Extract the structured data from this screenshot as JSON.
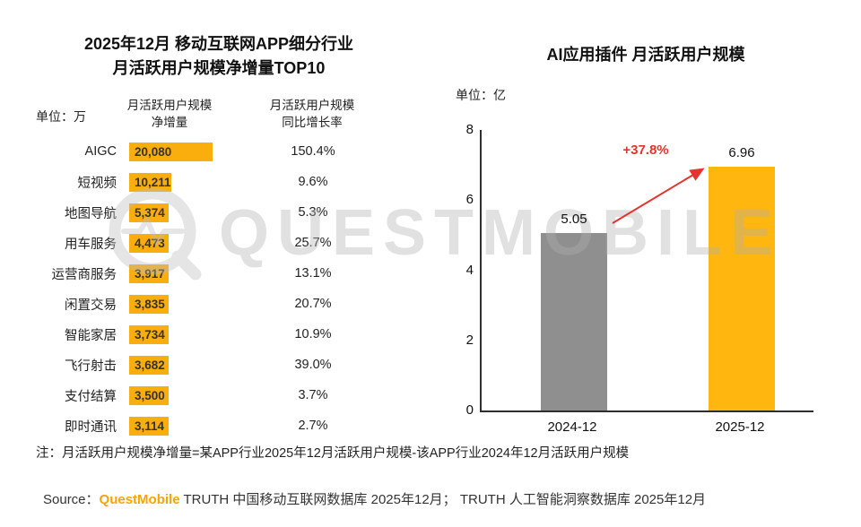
{
  "watermark": {
    "text": "QUESTMOBILE"
  },
  "left_panel": {
    "title_line1": "2025年12月 移动互联网APP细分行业",
    "title_line2": "月活跃用户规模净增量TOP10",
    "unit_label": "单位：万",
    "col_net_increase_l1": "月活跃用户规模",
    "col_net_increase_l2": "净增量",
    "col_growth_l1": "月活跃用户规模",
    "col_growth_l2": "同比增长率"
  },
  "right_panel": {
    "title": "AI应用插件 月活跃用户规模",
    "unit_label": "单位：亿",
    "growth_label": "+37.8%"
  },
  "note": "注：月活跃用户规模净增量=某APP行业2025年12月活跃用户规模-该APP行业2024年12月活跃用户规模",
  "source": {
    "prefix": "Source：",
    "brand": "QuestMobile",
    "rest": " TRUTH 中国移动互联网数据库 2025年12月； TRUTH 人工智能洞察数据库 2025年12月"
  },
  "colors": {
    "bar_orange": "#F9AE0D",
    "bar_gray": "#8F8F8F",
    "bar_orange_right": "#FFB60E",
    "accent_red": "#E5332E",
    "brand_orange": "#F7A600"
  },
  "chart_data": [
    {
      "type": "bar",
      "orientation": "horizontal",
      "title": "2025年12月 移动互联网APP细分行业 月活跃用户规模净增量TOP10",
      "unit": "万",
      "legend_position": "none",
      "grid": false,
      "categories": [
        "AIGC",
        "短视频",
        "地图导航",
        "用车服务",
        "运营商服务",
        "闲置交易",
        "智能家居",
        "飞行射击",
        "支付结算",
        "即时通讯"
      ],
      "series": [
        {
          "name": "月活跃用户规模净增量",
          "values": [
            20080,
            10211,
            5374,
            4473,
            3917,
            3835,
            3734,
            3682,
            3500,
            3114
          ],
          "labels": [
            "20,080",
            "10,211",
            "5,374",
            "4,473",
            "3,917",
            "3,835",
            "3,734",
            "3,682",
            "3,500",
            "3,114"
          ]
        },
        {
          "name": "月活跃用户规模同比增长率",
          "values": [
            150.4,
            9.6,
            5.3,
            25.7,
            13.1,
            20.7,
            10.9,
            39.0,
            3.7,
            2.7
          ],
          "labels": [
            "150.4%",
            "9.6%",
            "5.3%",
            "25.7%",
            "13.1%",
            "20.7%",
            "10.9%",
            "39.0%",
            "3.7%",
            "2.7%"
          ]
        }
      ],
      "bar_color": "#F9AE0D"
    },
    {
      "type": "bar",
      "orientation": "vertical",
      "title": "AI应用插件 月活跃用户规模",
      "unit": "亿",
      "grid": false,
      "legend_position": "none",
      "categories": [
        "2024-12",
        "2025-12"
      ],
      "values": [
        5.05,
        6.96
      ],
      "labels": [
        "5.05",
        "6.96"
      ],
      "growth_annotation": "+37.8%",
      "ylim": [
        0,
        8
      ],
      "yticks": [
        0,
        2,
        4,
        6,
        8
      ],
      "bar_colors": [
        "#8F8F8F",
        "#FFB60E"
      ]
    }
  ]
}
